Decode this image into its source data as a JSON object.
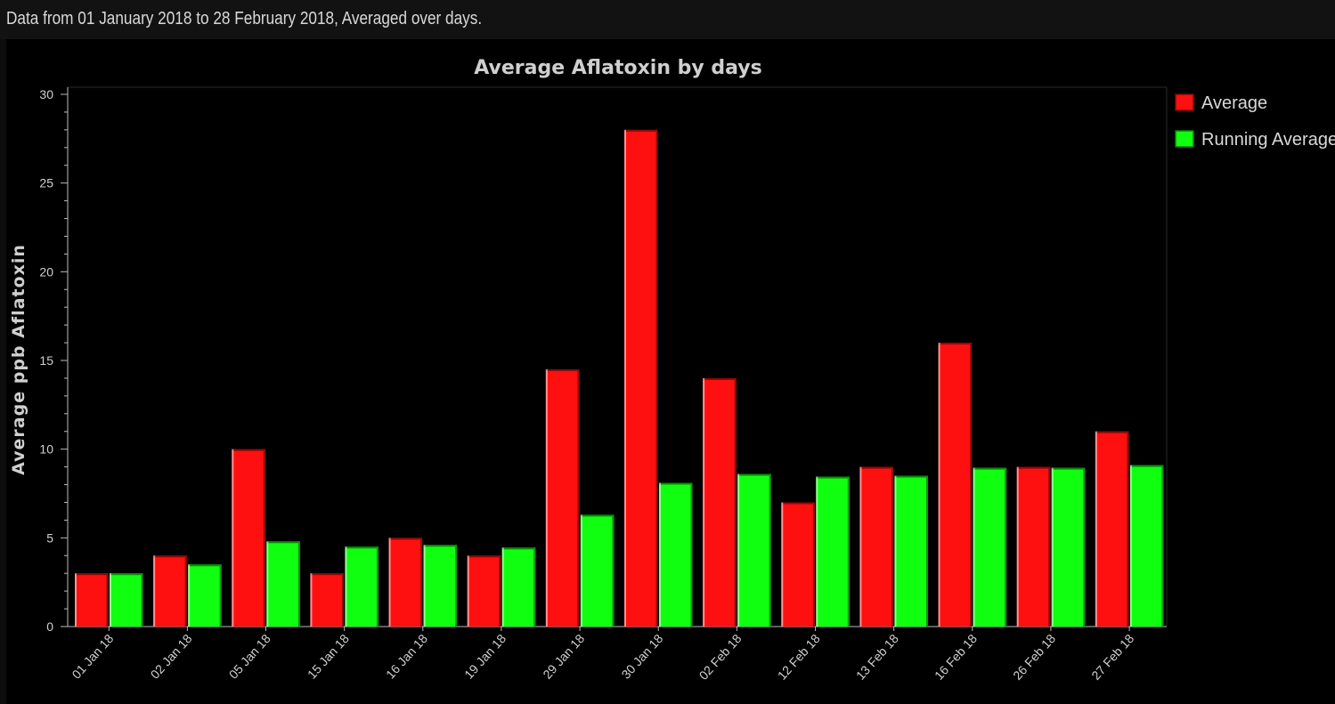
{
  "header": {
    "text": "Data from 01 January 2018 to 28 February 2018, Averaged over days."
  },
  "chart_data": {
    "type": "bar",
    "title": "Average Aflatoxin by days",
    "xlabel": "",
    "ylabel": "Average ppb Aflatoxin",
    "ylim": [
      0,
      30
    ],
    "yticks": [
      0,
      5,
      10,
      15,
      20,
      25,
      30
    ],
    "grid": false,
    "legend_position": "top-right, outside plot",
    "categories": [
      "01 Jan 18",
      "02 Jan 18",
      "05 Jan 18",
      "15 Jan 18",
      "16 Jan 18",
      "19 Jan 18",
      "29 Jan 18",
      "30 Jan 18",
      "02 Feb 18",
      "12 Feb 18",
      "13 Feb 18",
      "16 Feb 18",
      "26 Feb 18",
      "27 Feb 18"
    ],
    "series": [
      {
        "name": "Average",
        "color": "#ff1010",
        "values": [
          3,
          4,
          10,
          3,
          5,
          4,
          14.5,
          28,
          14,
          7,
          9,
          16,
          9,
          11
        ]
      },
      {
        "name": "Running Average",
        "color": "#10ff10",
        "values": [
          3,
          3.5,
          4.8,
          4.5,
          4.6,
          4.45,
          6.3,
          8.1,
          8.6,
          8.45,
          8.5,
          8.95,
          8.95,
          9.1
        ]
      }
    ]
  }
}
